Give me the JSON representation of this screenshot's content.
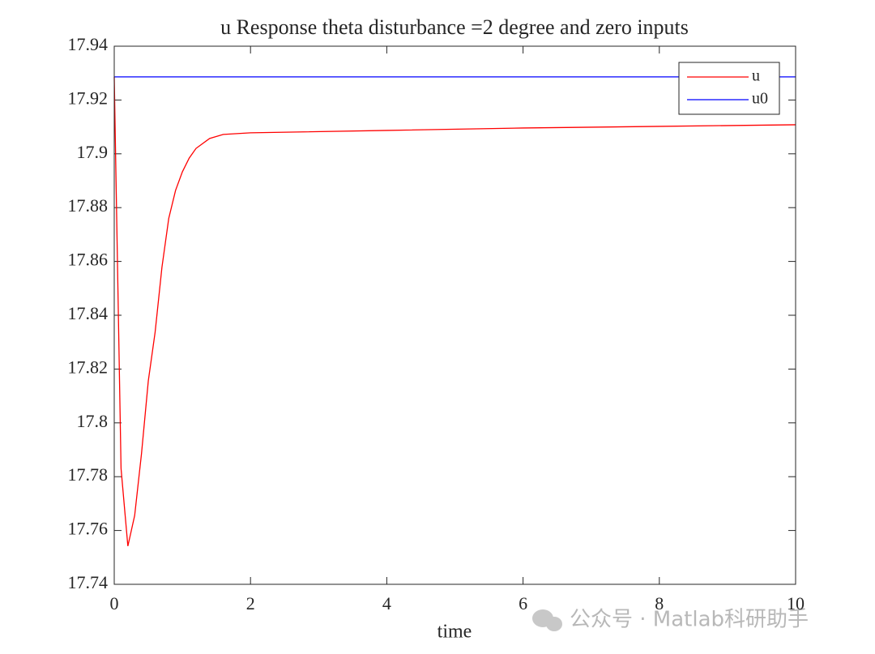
{
  "chart_data": {
    "type": "line",
    "title": "u Response theta disturbance =2 degree and zero inputs",
    "x_label": "time",
    "x": [
      0,
      0.1,
      0.2,
      0.3,
      0.4,
      0.5,
      0.6,
      0.7,
      0.8,
      0.9,
      1.0,
      1.1,
      1.2,
      1.4,
      1.6,
      2,
      4,
      6,
      8,
      10
    ],
    "series": [
      {
        "name": "u",
        "color": "#ff0000",
        "values": [
          17.9286,
          17.783,
          17.7542,
          17.7656,
          17.7885,
          17.8156,
          17.8337,
          17.8578,
          17.876,
          17.8864,
          17.8933,
          17.8984,
          17.902,
          17.9057,
          17.9072,
          17.9078,
          17.9087,
          17.9096,
          17.9102,
          17.9108
        ]
      },
      {
        "name": "u0",
        "color": "#0000ff",
        "values": [
          17.9286,
          17.9286,
          17.9286,
          17.9286,
          17.9286,
          17.9286,
          17.9286,
          17.9286,
          17.9286,
          17.9286,
          17.9286,
          17.9286,
          17.9286,
          17.9286,
          17.9286,
          17.9286,
          17.9286,
          17.9286,
          17.9286,
          17.9286
        ]
      }
    ],
    "xlim": [
      0,
      10
    ],
    "xticks": [
      0,
      2,
      4,
      6,
      8,
      10
    ],
    "ylim": [
      17.74,
      17.94
    ],
    "yticks": [
      17.74,
      17.76,
      17.78,
      17.8,
      17.82,
      17.84,
      17.86,
      17.88,
      17.9,
      17.92,
      17.94
    ],
    "grid": false,
    "legend": "northeast"
  },
  "watermark": "公众号 · Matlab科研助手"
}
